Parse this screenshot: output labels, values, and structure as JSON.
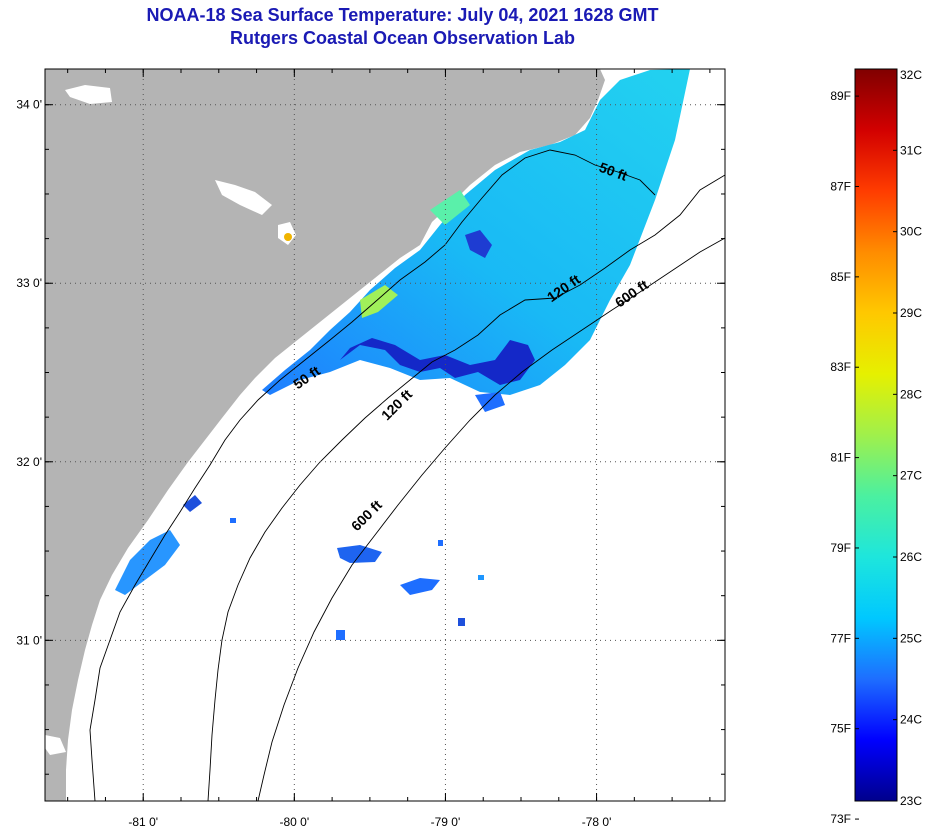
{
  "title": {
    "line1": "NOAA-18 Sea Surface Temperature:  July 04, 2021 1628 GMT",
    "line2": "Rutgers Coastal Ocean Observation Lab"
  },
  "map": {
    "lon_range": [
      -81.65,
      -77.15
    ],
    "lat_range": [
      30.1,
      34.2
    ],
    "lon_ticks": [
      {
        "value": -81,
        "label": "-81 0'"
      },
      {
        "value": -80,
        "label": "-80 0'"
      },
      {
        "value": -79,
        "label": "-79 0'"
      },
      {
        "value": -78,
        "label": "-78 0'"
      }
    ],
    "lat_ticks": [
      {
        "value": 34,
        "label": "34 0'"
      },
      {
        "value": 33,
        "label": "33 0'"
      },
      {
        "value": 32,
        "label": "32 0'"
      },
      {
        "value": 31,
        "label": "31 0'"
      }
    ],
    "land_color": "#b4b4b4",
    "isobath_labels": [
      {
        "text": "50 ft",
        "lon": -77.9,
        "lat": 33.6,
        "angle": 20
      },
      {
        "text": "120 ft",
        "lon": -78.2,
        "lat": 32.95,
        "angle": -35
      },
      {
        "text": "600 ft",
        "lon": -77.75,
        "lat": 32.92,
        "angle": -35
      },
      {
        "text": "50 ft",
        "lon": -79.9,
        "lat": 32.45,
        "angle": -35
      },
      {
        "text": "120 ft",
        "lon": -79.3,
        "lat": 32.3,
        "angle": -45
      },
      {
        "text": "600 ft",
        "lon": -79.5,
        "lat": 31.68,
        "angle": -45
      }
    ]
  },
  "colorbar": {
    "gradient_colors": [
      "#00008c",
      "#0000ff",
      "#1e6eff",
      "#00c8ff",
      "#1ee6dc",
      "#4bf0a0",
      "#a0f04b",
      "#e6f000",
      "#ffc800",
      "#ff8c00",
      "#ff3c00",
      "#d20000",
      "#800000"
    ],
    "fahrenheit_labels": [
      {
        "label": "73F",
        "value": 73
      },
      {
        "label": "75F",
        "value": 75
      },
      {
        "label": "77F",
        "value": 77
      },
      {
        "label": "79F",
        "value": 79
      },
      {
        "label": "81F",
        "value": 81
      },
      {
        "label": "83F",
        "value": 83
      },
      {
        "label": "85F",
        "value": 85
      },
      {
        "label": "87F",
        "value": 87
      },
      {
        "label": "89F",
        "value": 89
      }
    ],
    "celsius_labels": [
      {
        "label": "23C",
        "value": 23
      },
      {
        "label": "24C",
        "value": 24
      },
      {
        "label": "25C",
        "value": 25
      },
      {
        "label": "26C",
        "value": 26
      },
      {
        "label": "27C",
        "value": 27
      },
      {
        "label": "28C",
        "value": 28
      },
      {
        "label": "29C",
        "value": 29
      },
      {
        "label": "30C",
        "value": 30
      },
      {
        "label": "31C",
        "value": 31
      },
      {
        "label": "32C",
        "value": 32
      }
    ],
    "range_c": [
      23,
      32
    ]
  }
}
